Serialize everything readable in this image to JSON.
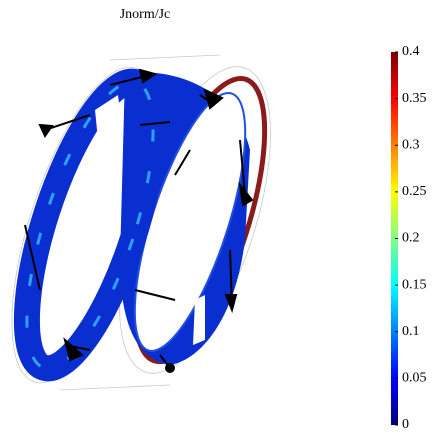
{
  "chart_data": {
    "type": "surface",
    "title": "Jnorm/Jc",
    "clim": [
      0,
      0.4
    ],
    "cticks": [
      0,
      0.05,
      0.1,
      0.15,
      0.2,
      0.25,
      0.3,
      0.35,
      0.4
    ],
    "colormap": [
      "#00007f",
      "#0000ff",
      "#0080ff",
      "#00ffff",
      "#80ff80",
      "#ffff00",
      "#ff8000",
      "#ff0000",
      "#7f0000"
    ]
  }
}
